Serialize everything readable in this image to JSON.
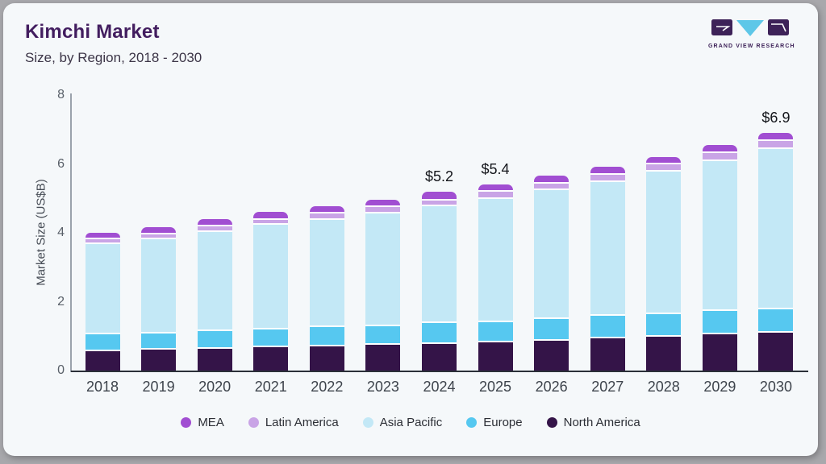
{
  "header": {
    "title": "Kimchi Market",
    "subtitle": "Size, by Region, 2018 - 2030",
    "logo": {
      "name": "Grand View Research",
      "caption": "GRAND VIEW RESEARCH",
      "purple": "#3d2258",
      "cyan": "#5ec7e8"
    }
  },
  "chart_data": {
    "type": "bar",
    "stacked": true,
    "title": "Kimchi Market Size, by Region, 2018 - 2030",
    "ylabel": "Market Size (US$B)",
    "ylim": [
      0,
      8
    ],
    "yticks": [
      "0",
      "2",
      "4",
      "6",
      "8"
    ],
    "grid": false,
    "legend_position": "bottom",
    "categories": [
      "2018",
      "2019",
      "2020",
      "2021",
      "2022",
      "2023",
      "2024",
      "2025",
      "2026",
      "2027",
      "2028",
      "2029",
      "2030"
    ],
    "series": [
      {
        "name": "North America",
        "color": "#341448",
        "values": [
          0.62,
          0.66,
          0.69,
          0.73,
          0.76,
          0.8,
          0.82,
          0.86,
          0.92,
          0.99,
          1.02,
          1.09,
          1.15
        ]
      },
      {
        "name": "Europe",
        "color": "#56c8f0",
        "values": [
          0.47,
          0.46,
          0.5,
          0.52,
          0.54,
          0.54,
          0.6,
          0.58,
          0.62,
          0.65,
          0.66,
          0.68,
          0.68
        ]
      },
      {
        "name": "Asia Pacific",
        "color": "#c3e8f6",
        "values": [
          2.64,
          2.73,
          2.88,
          3.02,
          3.13,
          3.26,
          3.4,
          3.6,
          3.74,
          3.88,
          4.14,
          4.37,
          4.64
        ]
      },
      {
        "name": "Latin America",
        "color": "#c9a4e6",
        "values": [
          0.13,
          0.16,
          0.17,
          0.16,
          0.17,
          0.19,
          0.17,
          0.2,
          0.19,
          0.22,
          0.22,
          0.23,
          0.25
        ]
      },
      {
        "name": "MEA",
        "color": "#a14ed2",
        "values": [
          0.14,
          0.16,
          0.16,
          0.17,
          0.17,
          0.16,
          0.21,
          0.16,
          0.18,
          0.19,
          0.16,
          0.18,
          0.18
        ]
      }
    ],
    "totals": [
      4.0,
      4.17,
      4.4,
      4.6,
      4.77,
      4.95,
      5.2,
      5.4,
      5.65,
      5.93,
      6.2,
      6.55,
      6.9
    ],
    "annotations": [
      {
        "category": "2024",
        "label": "$5.2"
      },
      {
        "category": "2025",
        "label": "$5.4"
      },
      {
        "category": "2030",
        "label": "$6.9"
      }
    ],
    "legend_order": [
      "MEA",
      "Latin America",
      "Asia Pacific",
      "Europe",
      "North America"
    ]
  }
}
